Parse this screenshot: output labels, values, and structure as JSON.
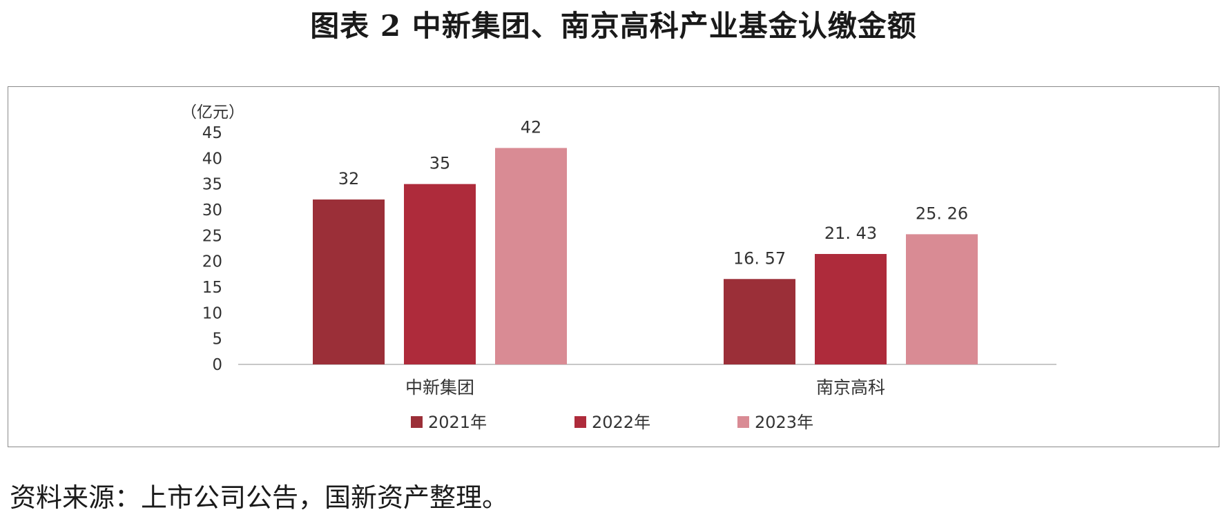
{
  "title": "图表 2  中新集团、南京高科产业基金认缴金额",
  "source": "资料来源：上市公司公告，国新资产整理。",
  "chart_data": {
    "type": "bar",
    "unit_label": "（亿元）",
    "categories": [
      "中新集团",
      "南京高科"
    ],
    "series": [
      {
        "name": "2021年",
        "color": "#9b2f38",
        "values": [
          32,
          16.57
        ],
        "labels": [
          "32",
          "16. 57"
        ]
      },
      {
        "name": "2022年",
        "color": "#ae2b3b",
        "values": [
          35,
          21.43
        ],
        "labels": [
          "35",
          "21. 43"
        ]
      },
      {
        "name": "2023年",
        "color": "#d98b94",
        "values": [
          42,
          25.26
        ],
        "labels": [
          "42",
          "25. 26"
        ]
      }
    ],
    "ylim": [
      0,
      45
    ],
    "yticks": [
      0,
      5,
      10,
      15,
      20,
      25,
      30,
      35,
      40,
      45
    ],
    "grid": false,
    "legend_position": "bottom"
  }
}
